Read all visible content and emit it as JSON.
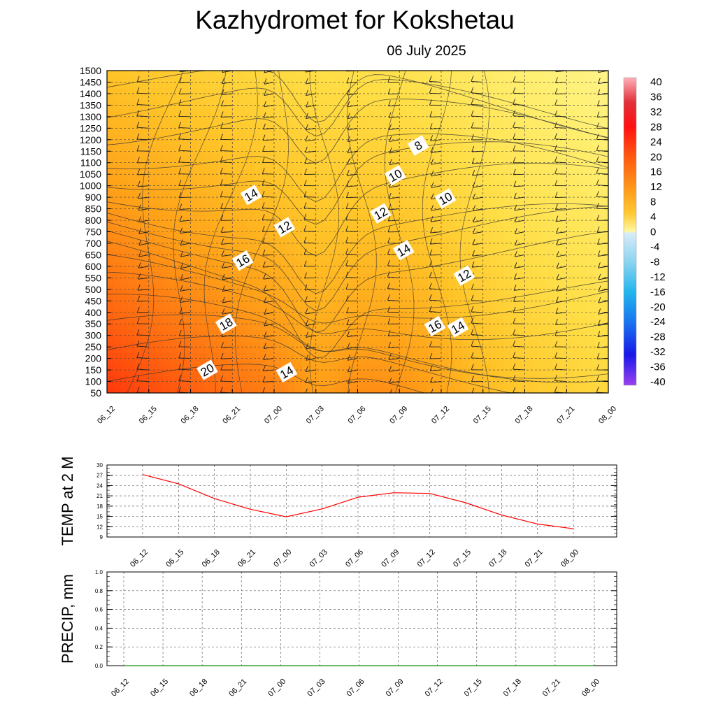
{
  "title": "Kazhydromet  for Kokshetau",
  "date": "06 July 2025",
  "chart_data": [
    {
      "type": "heatmap",
      "title": "Kazhydromet  for Kokshetau",
      "subtitle": "06 July 2025",
      "x_ticks": [
        "06_12",
        "06_15",
        "06_18",
        "06_21",
        "07_00",
        "07_03",
        "07_06",
        "07_09",
        "07_12",
        "07_15",
        "07_18",
        "07_21",
        "08_00"
      ],
      "y_ticks": [
        "50",
        "100",
        "150",
        "200",
        "250",
        "300",
        "350",
        "400",
        "450",
        "500",
        "550",
        "600",
        "650",
        "700",
        "750",
        "800",
        "850",
        "900",
        "1000",
        "1050",
        "1100",
        "1150",
        "1200",
        "1250",
        "1300",
        "1350",
        "1400",
        "1450",
        "1500"
      ],
      "colorbar_ticks": [
        "40",
        "36",
        "32",
        "28",
        "24",
        "20",
        "16",
        "12",
        "8",
        "4",
        "0",
        "-4",
        "-8",
        "-12",
        "-16",
        "-20",
        "-24",
        "-28",
        "-32",
        "-36",
        "-40"
      ],
      "colorbar_range": [
        -40,
        40
      ],
      "contour_labels": [
        {
          "text": "8",
          "t": 7.45,
          "level": 21.5
        },
        {
          "text": "10",
          "t": 6.9,
          "level": 18.9
        },
        {
          "text": "10",
          "t": 8.1,
          "level": 16.9
        },
        {
          "text": "12",
          "t": 6.55,
          "level": 15.6
        },
        {
          "text": "12",
          "t": 4.25,
          "level": 14.4
        },
        {
          "text": "12",
          "t": 8.55,
          "level": 10.2
        },
        {
          "text": "14",
          "t": 3.45,
          "level": 17.2
        },
        {
          "text": "14",
          "t": 7.1,
          "level": 12.4
        },
        {
          "text": "14",
          "t": 8.4,
          "level": 5.7
        },
        {
          "text": "14",
          "t": 4.3,
          "level": 1.8
        },
        {
          "text": "16",
          "t": 3.25,
          "level": 11.5
        },
        {
          "text": "16",
          "t": 7.85,
          "level": 5.8
        },
        {
          "text": "18",
          "t": 2.85,
          "level": 6.0
        },
        {
          "text": "20",
          "t": 2.4,
          "level": 2.0
        }
      ],
      "grid": true
    },
    {
      "type": "line",
      "ylabel": "TEMP at 2 M",
      "x": [
        "06_12",
        "06_15",
        "06_18",
        "06_21",
        "07_00",
        "07_03",
        "07_06",
        "07_09",
        "07_12",
        "07_15",
        "07_18",
        "07_21",
        "08_00"
      ],
      "y_ticks": [
        "30",
        "27",
        "24",
        "21",
        "18",
        "15",
        "12",
        "9"
      ],
      "ylim": [
        9,
        30
      ],
      "series": [
        {
          "values": [
            27.2,
            24.5,
            20.2,
            17.1,
            14.9,
            17.2,
            20.6,
            21.9,
            21.7,
            19.0,
            15.4,
            12.8,
            11.4
          ],
          "color": "#ff0000"
        }
      ],
      "grid": true
    },
    {
      "type": "line",
      "ylabel": "PRECIP, mm",
      "x": [
        "06_12",
        "06_15",
        "06_18",
        "06_21",
        "07_00",
        "07_03",
        "07_06",
        "07_09",
        "07_12",
        "07_15",
        "07_18",
        "07_21",
        "08_00"
      ],
      "y_ticks": [
        "1.0",
        "0.8",
        "0.6",
        "0.4",
        "0.2",
        "0.0"
      ],
      "ylim": [
        0,
        1
      ],
      "series": [
        {
          "values": [
            0,
            0,
            0,
            0,
            0,
            0,
            0,
            0,
            0,
            0,
            0,
            0,
            0
          ],
          "color": "#1a8a1a"
        }
      ],
      "grid": true
    }
  ]
}
